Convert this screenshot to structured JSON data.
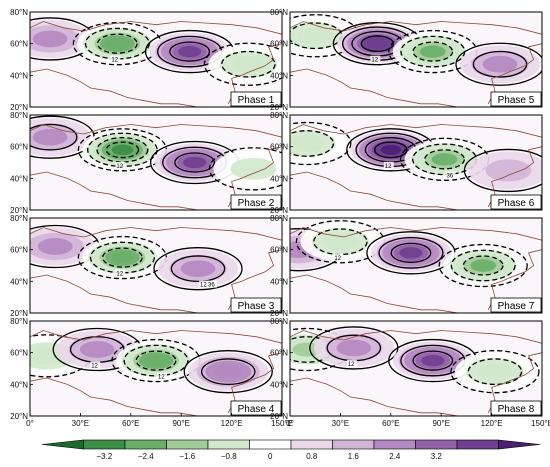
{
  "chart_data": {
    "type": "heatmap",
    "layout": {
      "rows": 4,
      "cols": 2
    },
    "lat_range": [
      20,
      80
    ],
    "lon_range": [
      0,
      150
    ],
    "lat_ticks": [
      "20°N",
      "40°N",
      "60°N",
      "80°N"
    ],
    "lon_ticks": [
      "0°",
      "30°E",
      "60°E",
      "90°E",
      "120°E",
      "150°E"
    ],
    "colorbar": {
      "ticks": [
        "−3.2",
        "−2.4",
        "−1.6",
        "−0.8",
        "0",
        "0.8",
        "1.6",
        "2.4",
        "3.2"
      ],
      "colors": [
        "#1c6b2c",
        "#3c8e45",
        "#6aae6a",
        "#a0cc98",
        "#d2e8cc",
        "#ffffff",
        "#ead8ea",
        "#d3b3d8",
        "#b488c0",
        "#9262a8",
        "#6e3f8e",
        "#4c1f72"
      ]
    },
    "panels": [
      {
        "label": "Phase 1",
        "contour_labels": [
          "12"
        ],
        "centers": [
          {
            "lon": 12,
            "lat": 63,
            "amp": 1.0
          },
          {
            "lon": 52,
            "lat": 60,
            "amp": -2.2
          },
          {
            "lon": 95,
            "lat": 55,
            "amp": 2.4
          },
          {
            "lon": 130,
            "lat": 47,
            "amp": -1.2
          }
        ]
      },
      {
        "label": "Phase 2",
        "contour_labels": [
          "12"
        ],
        "centers": [
          {
            "lon": 12,
            "lat": 66,
            "amp": 1.4
          },
          {
            "lon": 55,
            "lat": 58,
            "amp": -2.6
          },
          {
            "lon": 98,
            "lat": 50,
            "amp": 2.2
          },
          {
            "lon": 133,
            "lat": 46,
            "amp": -0.8
          }
        ]
      },
      {
        "label": "Phase 3",
        "contour_labels": [
          "12",
          "12",
          "36"
        ],
        "centers": [
          {
            "lon": 15,
            "lat": 62,
            "amp": 1.0
          },
          {
            "lon": 55,
            "lat": 55,
            "amp": -2.4
          },
          {
            "lon": 100,
            "lat": 48,
            "amp": 1.4
          }
        ]
      },
      {
        "label": "Phase 4",
        "contour_labels": [
          "12",
          "12"
        ],
        "centers": [
          {
            "lon": 10,
            "lat": 58,
            "amp": -1.0
          },
          {
            "lon": 40,
            "lat": 62,
            "amp": 1.2
          },
          {
            "lon": 75,
            "lat": 55,
            "amp": -2.2
          },
          {
            "lon": 118,
            "lat": 48,
            "amp": 1.6
          }
        ]
      },
      {
        "label": "Phase 5",
        "contour_labels": [
          "12"
        ],
        "centers": [
          {
            "lon": 15,
            "lat": 65,
            "amp": -1.2
          },
          {
            "lon": 52,
            "lat": 60,
            "amp": 2.8
          },
          {
            "lon": 85,
            "lat": 55,
            "amp": -2.0
          },
          {
            "lon": 125,
            "lat": 47,
            "amp": 1.2
          }
        ]
      },
      {
        "label": "Phase 6",
        "contour_labels": [
          "12",
          "36"
        ],
        "centers": [
          {
            "lon": 10,
            "lat": 62,
            "amp": -1.2
          },
          {
            "lon": 60,
            "lat": 58,
            "amp": 3.0
          },
          {
            "lon": 92,
            "lat": 52,
            "amp": -2.0
          },
          {
            "lon": 130,
            "lat": 45,
            "amp": 0.8
          }
        ]
      },
      {
        "label": "Phase 7",
        "contour_labels": [
          "12"
        ],
        "centers": [
          {
            "lon": 5,
            "lat": 60,
            "amp": 1.0
          },
          {
            "lon": 30,
            "lat": 65,
            "amp": -1.4
          },
          {
            "lon": 72,
            "lat": 58,
            "amp": 2.4
          },
          {
            "lon": 115,
            "lat": 50,
            "amp": -1.8
          }
        ]
      },
      {
        "label": "Phase 8",
        "contour_labels": [
          "12"
        ],
        "centers": [
          {
            "lon": 10,
            "lat": 62,
            "amp": -1.6
          },
          {
            "lon": 38,
            "lat": 63,
            "amp": 1.2
          },
          {
            "lon": 85,
            "lat": 55,
            "amp": 2.4
          },
          {
            "lon": 122,
            "lat": 48,
            "amp": -1.2
          }
        ]
      }
    ]
  }
}
